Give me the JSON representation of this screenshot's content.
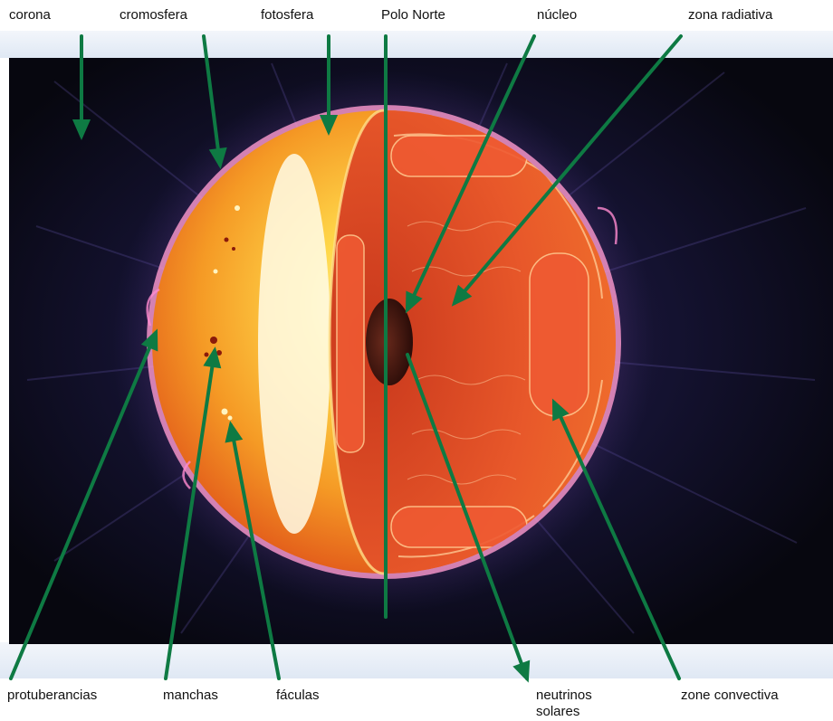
{
  "labels": {
    "corona": "corona",
    "cromosfera": "cromosfera",
    "fotosfera": "fotosfera",
    "polo_norte": "Polo Norte",
    "nucleo": "núcleo",
    "zona_radiativa": "zona radiativa",
    "protuberancias": "protuberancias",
    "manchas": "manchas",
    "faculas": "fáculas",
    "neutrinos_line1": "neutrinos",
    "neutrinos_line2": "solares",
    "zone_convectiva": "zone convectiva"
  },
  "colors": {
    "arrow": "#0e7a43",
    "space": "#0b0b1c",
    "band": "#eef3fb",
    "photosphere": "#f6b030",
    "interior": "#e2542a",
    "core": "#3a1410"
  }
}
